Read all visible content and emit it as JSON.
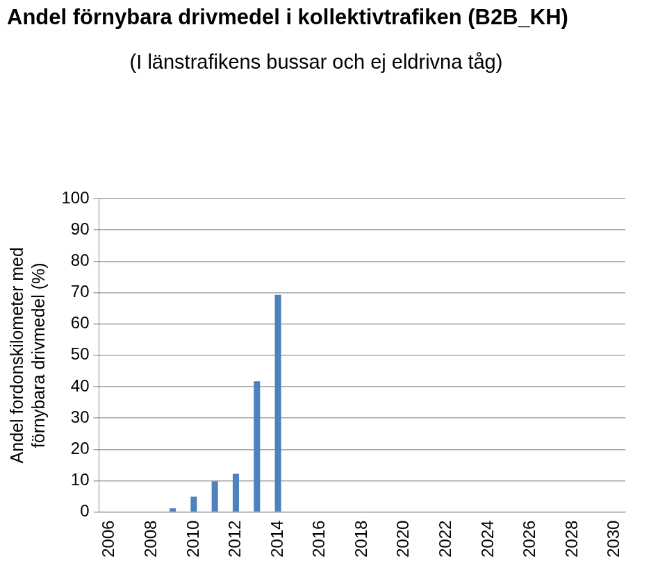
{
  "chart_data": {
    "type": "bar",
    "title": "Andel förnybara drivmedel i kollektivtrafiken (B2B_KH)",
    "subtitle": "(I länstrafikens bussar och ej eldrivna tåg)",
    "y_label": [
      "Andel fordonskilometer med",
      "förnybara drivmedel (%)"
    ],
    "categories": [
      "2006",
      null,
      "2008",
      null,
      "2010",
      null,
      "2012",
      null,
      "2014",
      null,
      "2016",
      null,
      "2018",
      null,
      "2020",
      null,
      "2022",
      null,
      "2024",
      null,
      "2026",
      null,
      "2028",
      null,
      "2030"
    ],
    "values": [
      null,
      null,
      null,
      1.2,
      4.9,
      9.8,
      12.2,
      41.7,
      69.3,
      null,
      null,
      null,
      null,
      null,
      null,
      null,
      null,
      null,
      null,
      null,
      null,
      null,
      null,
      null,
      null
    ],
    "color": "#4f81bd",
    "ylim": [
      0,
      100
    ],
    "yticks": [
      0,
      10,
      20,
      30,
      40,
      50,
      60,
      70,
      80,
      90,
      100
    ],
    "grid": true
  }
}
